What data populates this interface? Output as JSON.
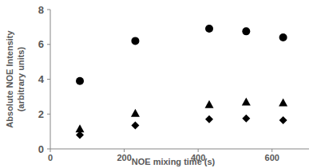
{
  "chart_data": {
    "type": "scatter",
    "xlabel": "NOE mixing time (s)",
    "ylabel": "Absolute NOE Intensity (arbitrary units)",
    "x": [
      80,
      230,
      430,
      530,
      630
    ],
    "series": [
      {
        "color": "#000000",
        "marker": "circle",
        "values": [
          3.9,
          6.2,
          6.9,
          6.75,
          6.4
        ]
      },
      {
        "color": "#000000",
        "marker": "triangle",
        "values": [
          1.15,
          2.05,
          2.55,
          2.7,
          2.65
        ]
      },
      {
        "color": "#000000",
        "marker": "diamond",
        "values": [
          0.8,
          1.35,
          1.7,
          1.75,
          1.65
        ]
      }
    ],
    "xlim": [
      0,
      700
    ],
    "xticks": [
      0,
      200,
      400,
      600
    ],
    "ylim": [
      0,
      8
    ],
    "yticks": [
      0,
      2,
      4,
      6,
      8
    ],
    "grid": false
  }
}
